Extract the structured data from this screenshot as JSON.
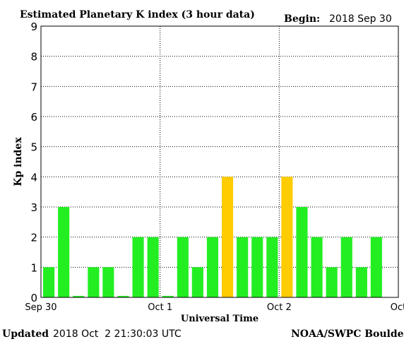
{
  "chart_data": {
    "type": "bar",
    "title": "Estimated Planetary K index (3 hour data)",
    "begin_label": "Begin:",
    "begin_date": "2018 Sep 30",
    "ylabel": "Kp index",
    "xlabel": "Universal Time",
    "ylim": [
      0,
      9
    ],
    "yticks": [
      "0",
      "1",
      "2",
      "3",
      "4",
      "5",
      "6",
      "7",
      "8",
      "9"
    ],
    "xticks": [
      {
        "label": "Sep 30",
        "pos": 0
      },
      {
        "label": "Oct 1",
        "pos": 8
      },
      {
        "label": "Oct 2",
        "pos": 16
      },
      {
        "label": "Oct",
        "pos": 24
      }
    ],
    "values": [
      1,
      3,
      0.05,
      1,
      1,
      0.05,
      2,
      2,
      0.05,
      2,
      1,
      2,
      4,
      2,
      2,
      2,
      4,
      3,
      2,
      1,
      2,
      1,
      2
    ],
    "colors": {
      "quiet": "#22ee22",
      "active": "#ffcc00",
      "bar_edge": "#009900",
      "axis": "#000000"
    },
    "grid": {
      "horizontal": true,
      "day_lines": true
    }
  },
  "footer": {
    "updated_label": "Updated",
    "updated_value": "2018 Oct  2 21:30:03 UTC",
    "source": "NOAA/SWPC Boulder"
  }
}
